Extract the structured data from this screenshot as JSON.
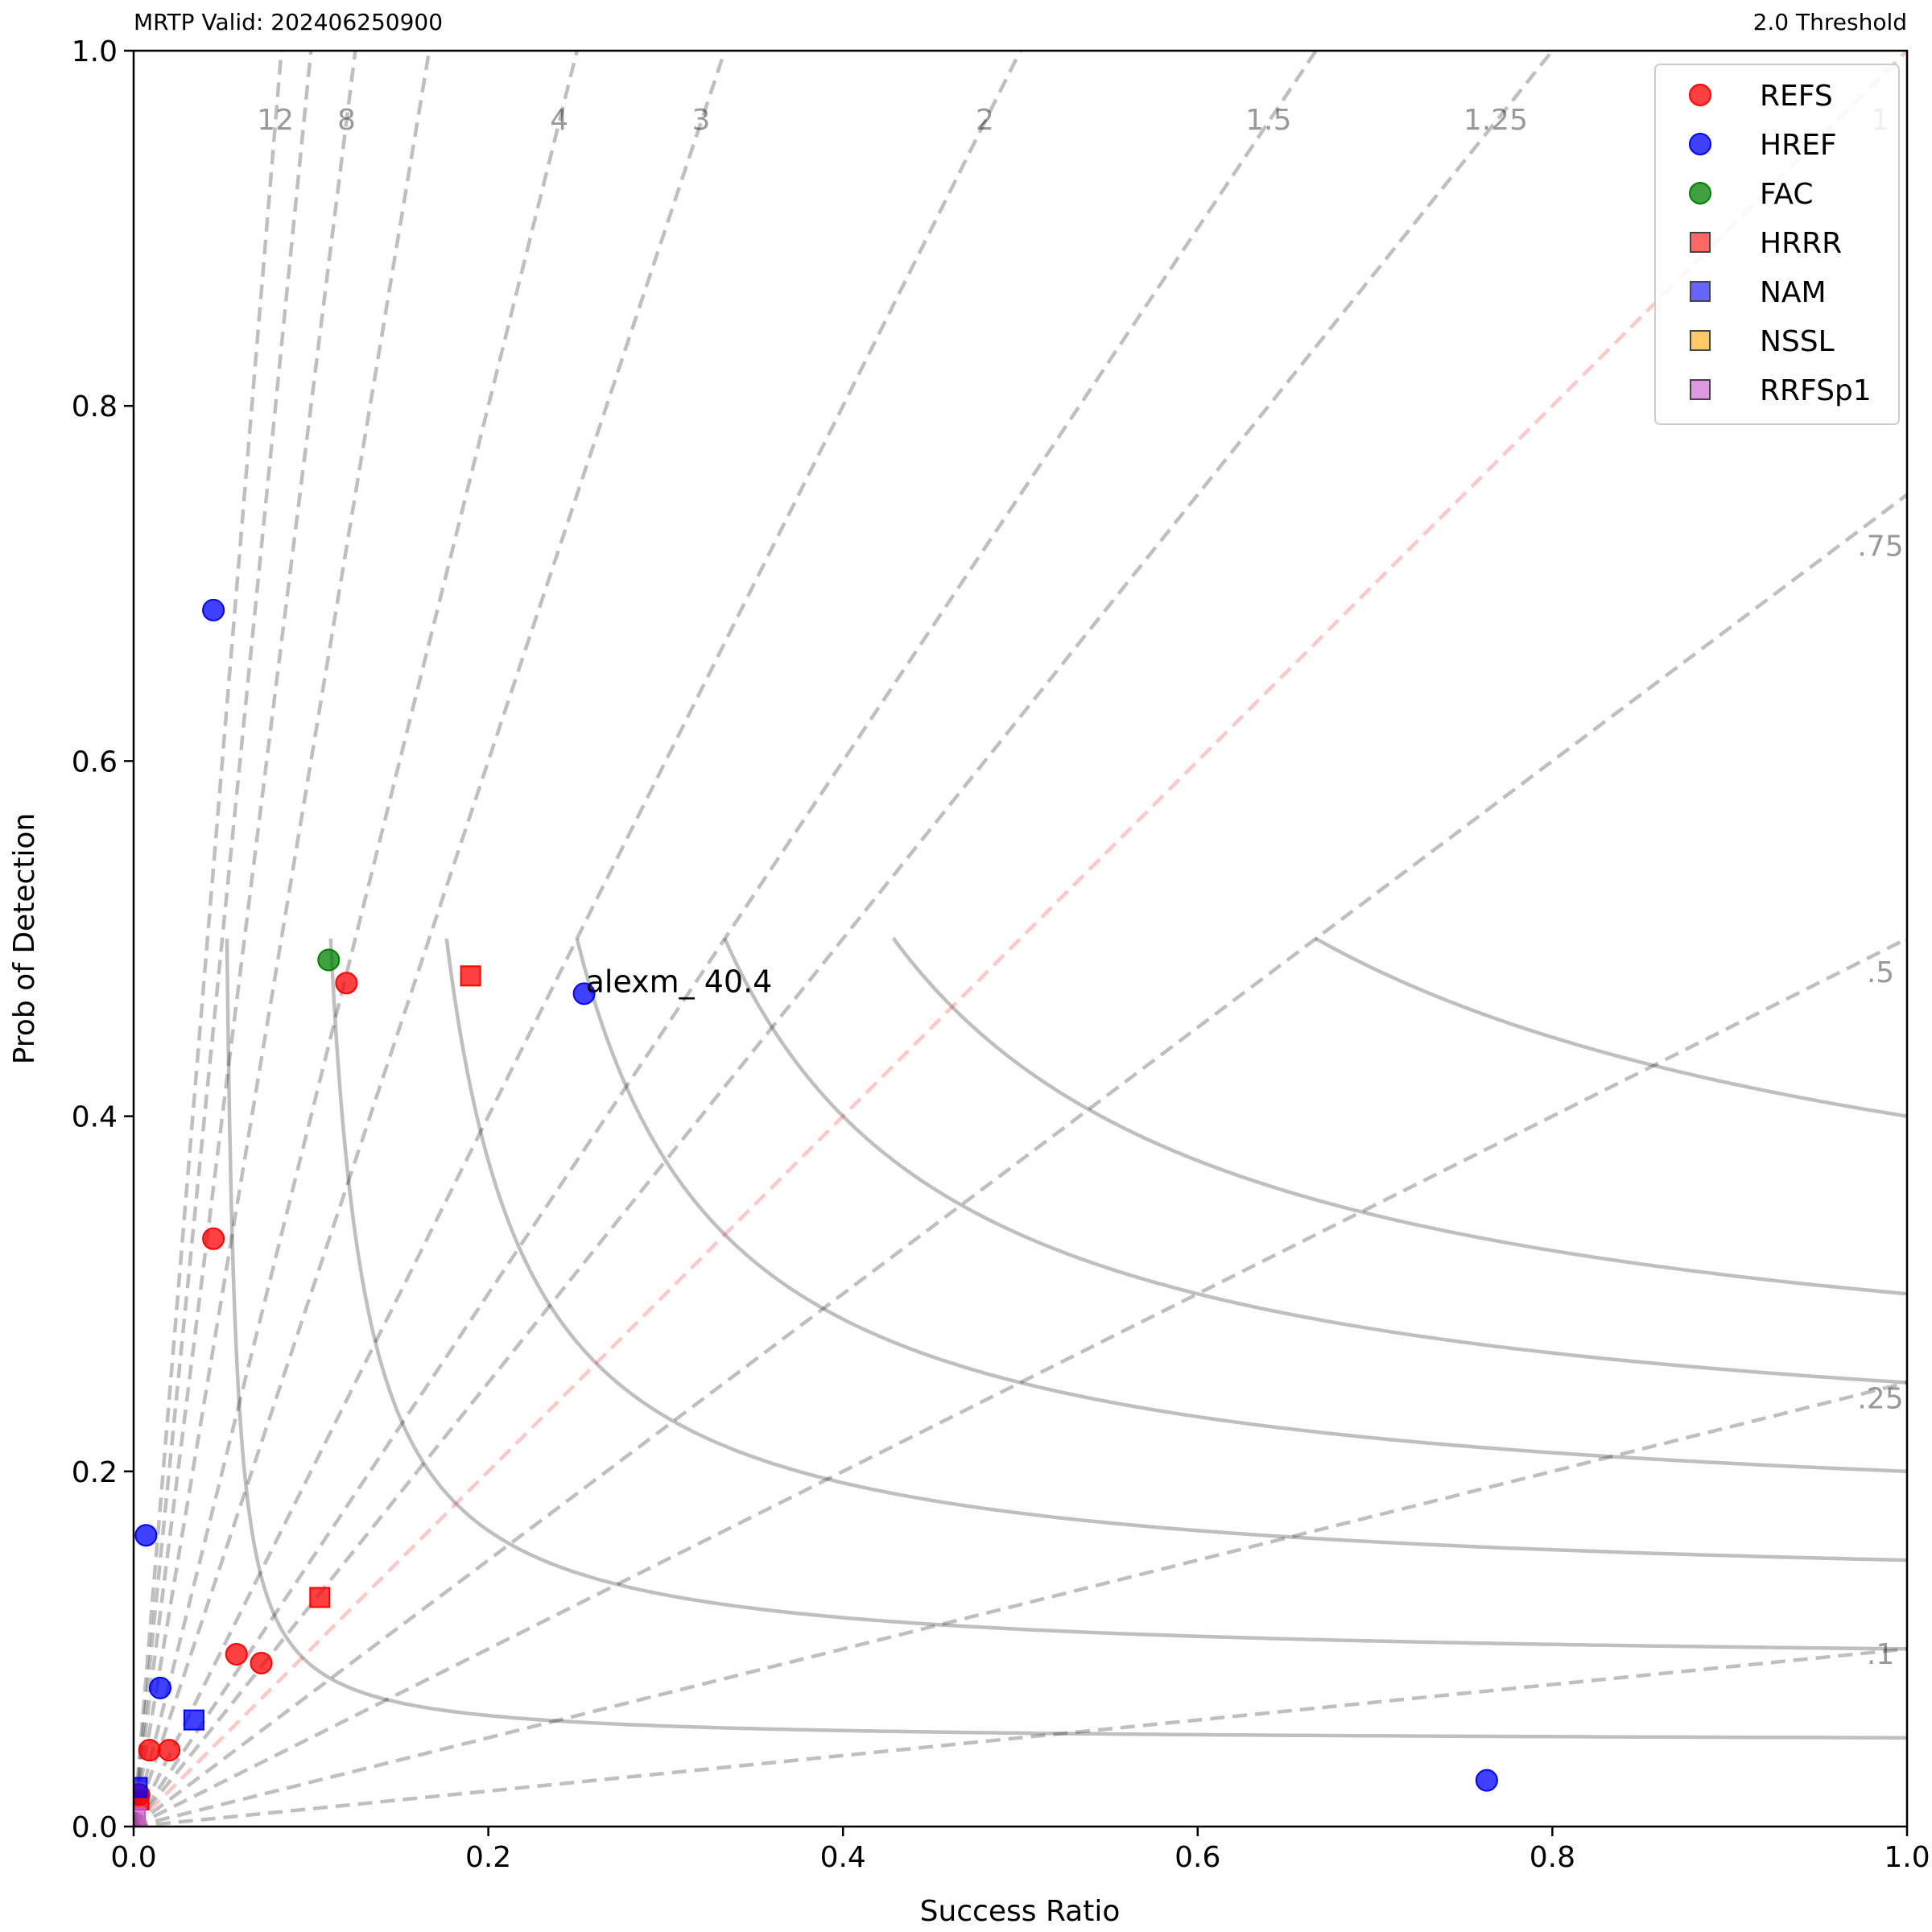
{
  "header": {
    "left_title": "MRTP Valid: 202406250900",
    "right_title": "2.0 Threshold"
  },
  "chart_data": {
    "type": "scatter",
    "title": "",
    "xlabel": "Success Ratio",
    "ylabel": "Prob of Detection",
    "xlim": [
      0.0,
      1.0
    ],
    "ylim": [
      0.0,
      1.0
    ],
    "xticks": [
      "0.0",
      "0.2",
      "0.4",
      "0.6",
      "0.8",
      "1.0"
    ],
    "yticks": [
      "0.0",
      "0.2",
      "0.4",
      "0.6",
      "0.8",
      "1.0"
    ],
    "grid": false,
    "legend_position": "top-right",
    "background_lines": {
      "csi_levels": [
        0.05,
        0.1,
        0.15,
        0.2,
        0.25,
        0.3,
        0.4,
        0.5,
        0.6,
        0.7
      ],
      "csi_labels": [
        ".1",
        ".25",
        ".5",
        ".75",
        "1"
      ],
      "bias_lines": [
        {
          "value": 12,
          "label": "12"
        },
        {
          "value": 10,
          "label": ""
        },
        {
          "value": 8,
          "label": "8"
        },
        {
          "value": 6,
          "label": ""
        },
        {
          "value": 4,
          "label": "4"
        },
        {
          "value": 3,
          "label": "3"
        },
        {
          "value": 2,
          "label": "2"
        },
        {
          "value": 1.5,
          "label": "1.5"
        },
        {
          "value": 1.25,
          "label": "1.25"
        },
        {
          "value": 1,
          "label": "1"
        },
        {
          "value": 0.75,
          "label": ".75"
        },
        {
          "value": 0.5,
          "label": ".5"
        },
        {
          "value": 0.25,
          "label": ".25"
        },
        {
          "value": 0.1,
          "label": ".1"
        }
      ]
    },
    "series": [
      {
        "name": "REFS",
        "marker": "circle",
        "color": "#ff0000",
        "points": [
          [
            0.12,
            0.475
          ],
          [
            0.045,
            0.331
          ],
          [
            0.058,
            0.097
          ],
          [
            0.072,
            0.092
          ],
          [
            0.009,
            0.043
          ],
          [
            0.02,
            0.043
          ],
          [
            0.003,
            0.018
          ]
        ]
      },
      {
        "name": "HREF",
        "marker": "circle",
        "color": "#0000ff",
        "points": [
          [
            0.045,
            0.685
          ],
          [
            0.254,
            0.469
          ],
          [
            0.007,
            0.164
          ],
          [
            0.015,
            0.078
          ],
          [
            0.763,
            0.026
          ]
        ]
      },
      {
        "name": "FAC",
        "marker": "circle",
        "color": "#008000",
        "points": [
          [
            0.11,
            0.488
          ]
        ]
      },
      {
        "name": "HRRR",
        "marker": "square",
        "color": "#ff0000",
        "points": [
          [
            0.19,
            0.479
          ],
          [
            0.105,
            0.129
          ],
          [
            0.003,
            0.015
          ]
        ]
      },
      {
        "name": "NAM",
        "marker": "square",
        "color": "#0000ff",
        "points": [
          [
            0.034,
            0.06
          ],
          [
            0.002,
            0.022
          ]
        ]
      },
      {
        "name": "NSSL",
        "marker": "square",
        "color": "#ffa500",
        "points": []
      },
      {
        "name": "RRFSp1",
        "marker": "square",
        "color": "#cc55cc",
        "points": [
          [
            0.001,
            0.005
          ]
        ]
      }
    ],
    "annotations": [
      {
        "text": "alexm_ 40.4",
        "x": 0.254,
        "y": 0.469
      }
    ]
  }
}
